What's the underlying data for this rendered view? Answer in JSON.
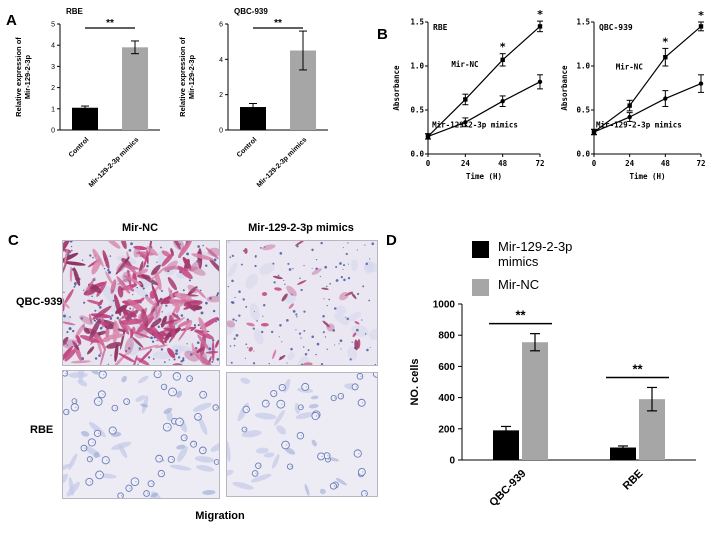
{
  "figure": {
    "panel_labels": {
      "A": "A",
      "B": "B",
      "C": "C",
      "D": "D"
    },
    "panel_c": {
      "col_headers": [
        "Mir-NC",
        "Mir-129-2-3p mimics"
      ],
      "row_labels": [
        "QBC-939",
        "RBE"
      ],
      "caption": "Migration"
    },
    "panel_d_legend": [
      {
        "label": "Mir-129-2-3p mimics",
        "color": "#000000"
      },
      {
        "label": "Mir-NC",
        "color": "#a6a6a6"
      }
    ],
    "micrographs": [
      {
        "id": "c1",
        "row": "QBC-939",
        "col": "Mir-NC",
        "appearance": "dense pink/magenta stained migrated cells"
      },
      {
        "id": "c2",
        "row": "QBC-939",
        "col": "Mir-129-2-3p mimics",
        "appearance": "sparse pink stained cells"
      },
      {
        "id": "c3",
        "row": "RBE",
        "col": "Mir-NC",
        "appearance": "blue stained cells, faint elongated bodies and small rings"
      },
      {
        "id": "c4",
        "row": "RBE",
        "col": "Mir-129-2-3p mimics",
        "appearance": "sparse blue stained round cells"
      }
    ]
  },
  "chart_data": [
    {
      "id": "A1",
      "type": "bar",
      "title": "RBE",
      "ylabel": "Relative expression of\nMir-129-2-3p",
      "categories": [
        "Control",
        "Mir-129-2-3p mimics"
      ],
      "values": [
        1.05,
        3.9
      ],
      "errors": [
        0.08,
        0.3
      ],
      "bar_colors": [
        "#000000",
        "#a6a6a6"
      ],
      "ylim": [
        0,
        5
      ],
      "yticks": [
        0,
        1,
        2,
        3,
        4,
        5
      ],
      "significance": "**"
    },
    {
      "id": "A2",
      "type": "bar",
      "title": "QBC-939",
      "ylabel": "Relative expression of\nMir-129-2-3p",
      "categories": [
        "Control",
        "Mir-129-2-3p mimics"
      ],
      "values": [
        1.3,
        4.5
      ],
      "errors": [
        0.2,
        1.1
      ],
      "bar_colors": [
        "#000000",
        "#a6a6a6"
      ],
      "ylim": [
        0,
        6
      ],
      "yticks": [
        0,
        2,
        4,
        6
      ],
      "significance": "**"
    },
    {
      "id": "B1",
      "type": "line",
      "title": "RBE",
      "xlabel": "Time (H)",
      "ylabel": "Absorbance",
      "x": [
        0,
        24,
        48,
        72
      ],
      "ylim": [
        0,
        1.5
      ],
      "yticks": [
        0,
        0.5,
        1.0,
        1.5
      ],
      "sig_symbol": "*",
      "series": [
        {
          "name": "Mir-NC",
          "marker": "square",
          "values": [
            0.2,
            0.62,
            1.07,
            1.45
          ],
          "errors": [
            0.03,
            0.06,
            0.07,
            0.06
          ],
          "sig_at": [
            48,
            72
          ],
          "label_pos": [
            0.33,
            0.34
          ]
        },
        {
          "name": "Mir-129-2-3p mimics",
          "marker": "circle",
          "values": [
            0.2,
            0.36,
            0.6,
            0.82
          ],
          "errors": [
            0.03,
            0.05,
            0.06,
            0.08
          ],
          "sig_at": [],
          "label_pos": [
            0.42,
            0.8
          ]
        }
      ]
    },
    {
      "id": "B2",
      "type": "line",
      "title": "QBC-939",
      "xlabel": "Time (H)",
      "ylabel": "Absorbance",
      "x": [
        0,
        24,
        48,
        72
      ],
      "ylim": [
        0,
        1.5
      ],
      "yticks": [
        0,
        0.5,
        1.0,
        1.5
      ],
      "sig_symbol": "*",
      "series": [
        {
          "name": "Mir-NC",
          "marker": "square",
          "values": [
            0.25,
            0.55,
            1.1,
            1.45
          ],
          "errors": [
            0.03,
            0.06,
            0.1,
            0.05
          ],
          "sig_at": [
            48,
            72
          ],
          "label_pos": [
            0.33,
            0.36
          ]
        },
        {
          "name": "Mir-129-2-3p mimics",
          "marker": "circle",
          "values": [
            0.25,
            0.42,
            0.63,
            0.8
          ],
          "errors": [
            0.03,
            0.05,
            0.09,
            0.1
          ],
          "sig_at": [],
          "label_pos": [
            0.42,
            0.8
          ]
        }
      ]
    },
    {
      "id": "D",
      "type": "grouped_bar",
      "ylabel": "NO. cells",
      "categories": [
        "QBC-939",
        "RBE"
      ],
      "series": [
        {
          "name": "Mir-129-2-3p mimics",
          "color": "#000000",
          "values": [
            190,
            80
          ],
          "errors": [
            25,
            10
          ]
        },
        {
          "name": "Mir-NC",
          "color": "#a6a6a6",
          "values": [
            755,
            390
          ],
          "errors": [
            55,
            75
          ]
        }
      ],
      "ylim": [
        0,
        1000
      ],
      "yticks": [
        0,
        200,
        400,
        600,
        800,
        1000
      ],
      "significance": [
        "**",
        "**"
      ]
    }
  ]
}
